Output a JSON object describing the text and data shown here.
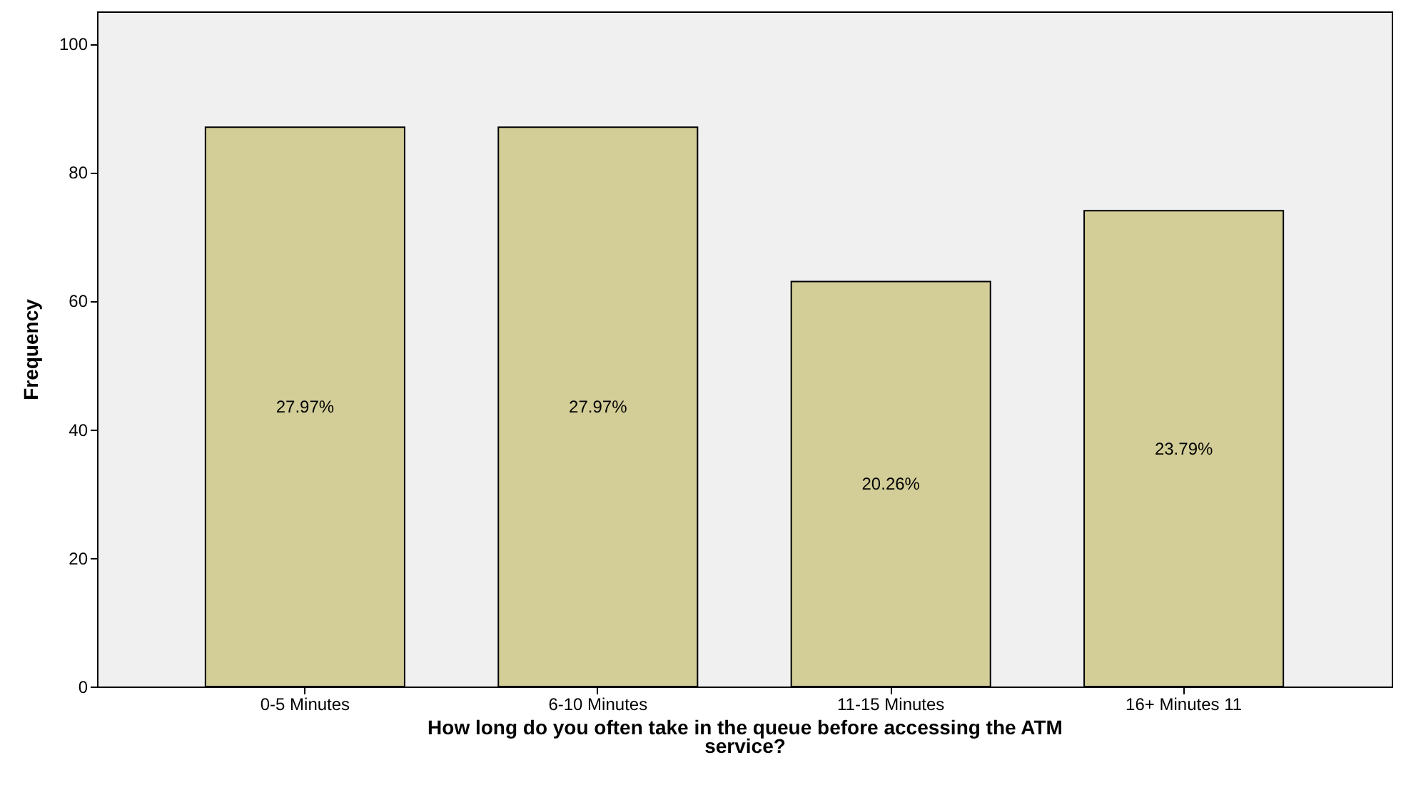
{
  "chart_data": {
    "type": "bar",
    "categories": [
      "0-5 Minutes",
      "6-10 Minutes",
      "11-15 Minutes",
      "16+ Minutes 11"
    ],
    "values": [
      87,
      87,
      63,
      74
    ],
    "annotations": [
      "27.97%",
      "27.97%",
      "20.26%",
      "23.79%"
    ],
    "color": "#d3ce97",
    "xlabel": "How long do you often take in the queue before accessing the ATM service?",
    "ylabel": "Frequency",
    "ylim": [
      0,
      105
    ],
    "yticks": [
      0,
      20,
      40,
      60,
      80,
      100
    ],
    "grid": false
  }
}
